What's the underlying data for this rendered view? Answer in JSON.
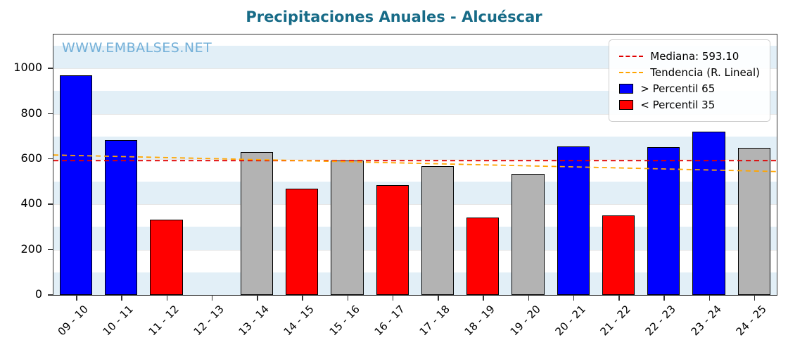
{
  "chart_data": {
    "type": "bar",
    "title": "Precipitaciones Anuales - Alcuéscar",
    "watermark": "WWW.EMBALSES.NET",
    "categories": [
      "09 - 10",
      "10 - 11",
      "11 - 12",
      "12 - 13",
      "13 - 14",
      "14 - 15",
      "15 - 16",
      "16 - 17",
      "17 - 18",
      "18 - 19",
      "19 - 20",
      "20 - 21",
      "21 - 22",
      "22 - 23",
      "23 - 24",
      "24 - 25"
    ],
    "values": [
      970,
      685,
      332,
      null,
      630,
      470,
      595,
      485,
      570,
      341,
      535,
      655,
      352,
      652,
      720,
      650
    ],
    "bar_colors": [
      "blue",
      "blue",
      "red",
      "none",
      "gray",
      "red",
      "gray",
      "red",
      "gray",
      "red",
      "gray",
      "blue",
      "red",
      "blue",
      "blue",
      "gray"
    ],
    "ylim": [
      0,
      1150
    ],
    "yticks": [
      0,
      200,
      400,
      600,
      800,
      1000
    ],
    "median": 593.1,
    "trend": {
      "start": 618,
      "end": 545
    },
    "legend": {
      "median_label": "Mediana: 593.10",
      "trend_label": "Tendencia (R. Lineal)",
      "p65_label": "> Percentil 65",
      "p35_label": "< Percentil 35"
    },
    "colors": {
      "blue": "#0000ff",
      "red": "#ff0000",
      "gray": "#b3b3b3",
      "median_line": "#e00000",
      "trend_line": "#ffa500",
      "title": "#176b87",
      "watermark": "#74b0d8",
      "stripe": "#e2eff7",
      "background": "#ffffff"
    },
    "legend_position": "upper right",
    "grid": true
  }
}
